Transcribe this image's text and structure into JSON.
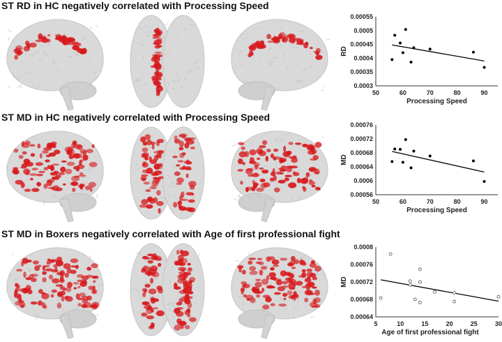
{
  "rows": [
    {
      "title": "ST RD in HC negatively correlated with Processing Speed",
      "density": 0.25
    },
    {
      "title": "ST MD in HC negatively correlated with Processing Speed",
      "density": 0.75
    },
    {
      "title": "ST MD in Boxers negatively correlated with Age of first professional fight",
      "density": 0.85
    }
  ],
  "colors": {
    "brain": "#d9d9d9",
    "highlight": "#d7191c",
    "marker": "#000000"
  },
  "chart_data": [
    {
      "type": "scatter",
      "xlabel": "Processing Speed",
      "ylabel": "RD",
      "xlim": [
        50,
        95
      ],
      "ylim": [
        0.0003,
        0.00055
      ],
      "xticks": [
        "50",
        "60",
        "70",
        "80",
        "90"
      ],
      "yticks": [
        "0.0003",
        "0.00035",
        "0.0004",
        "0.00045",
        "0.0005",
        "0.00055"
      ],
      "marker": "filled",
      "x": [
        56,
        57,
        59,
        60,
        61,
        63,
        64,
        70,
        86,
        90
      ],
      "y": [
        0.000395,
        0.000483,
        0.000455,
        0.00042,
        0.000504,
        0.000386,
        0.000438,
        0.000433,
        0.000422,
        0.000367
      ],
      "trendline": [
        [
          56,
          0.000448
        ],
        [
          90,
          0.00039
        ]
      ]
    },
    {
      "type": "scatter",
      "xlabel": "Processing Speed",
      "ylabel": "MD",
      "xlim": [
        50,
        95
      ],
      "ylim": [
        0.00056,
        0.00076
      ],
      "xticks": [
        "50",
        "60",
        "70",
        "80",
        "90"
      ],
      "yticks": [
        "0.00056",
        "0.0006",
        "0.00064",
        "0.00068",
        "0.00072",
        "0.00076"
      ],
      "marker": "filled",
      "x": [
        56,
        57,
        59,
        60,
        61,
        63,
        64,
        70,
        86,
        90
      ],
      "y": [
        0.000655,
        0.000691,
        0.00069,
        0.000653,
        0.000718,
        0.000637,
        0.000685,
        0.000671,
        0.000657,
        0.000598
      ],
      "trendline": [
        [
          56,
          0.000684
        ],
        [
          90,
          0.000625
        ]
      ]
    },
    {
      "type": "scatter",
      "xlabel": "Age of first professional fight",
      "ylabel": "MD",
      "xlim": [
        5,
        30
      ],
      "ylim": [
        0.00064,
        0.0008
      ],
      "xticks": [
        "5",
        "10",
        "15",
        "20",
        "25",
        "30"
      ],
      "yticks": [
        "0.00064",
        "0.00068",
        "0.00072",
        "0.00076",
        "0.0008"
      ],
      "marker": "open",
      "x": [
        6,
        8,
        12,
        12,
        13,
        14,
        14,
        14,
        17,
        21,
        21,
        30
      ],
      "y": [
        0.000683,
        0.000784,
        0.000722,
        0.000713,
        0.00068,
        0.000749,
        0.00072,
        0.000673,
        0.000697,
        0.000695,
        0.000675,
        0.000686
      ],
      "trendline": [
        [
          6,
          0.000725
        ],
        [
          30,
          0.000676
        ]
      ]
    }
  ]
}
